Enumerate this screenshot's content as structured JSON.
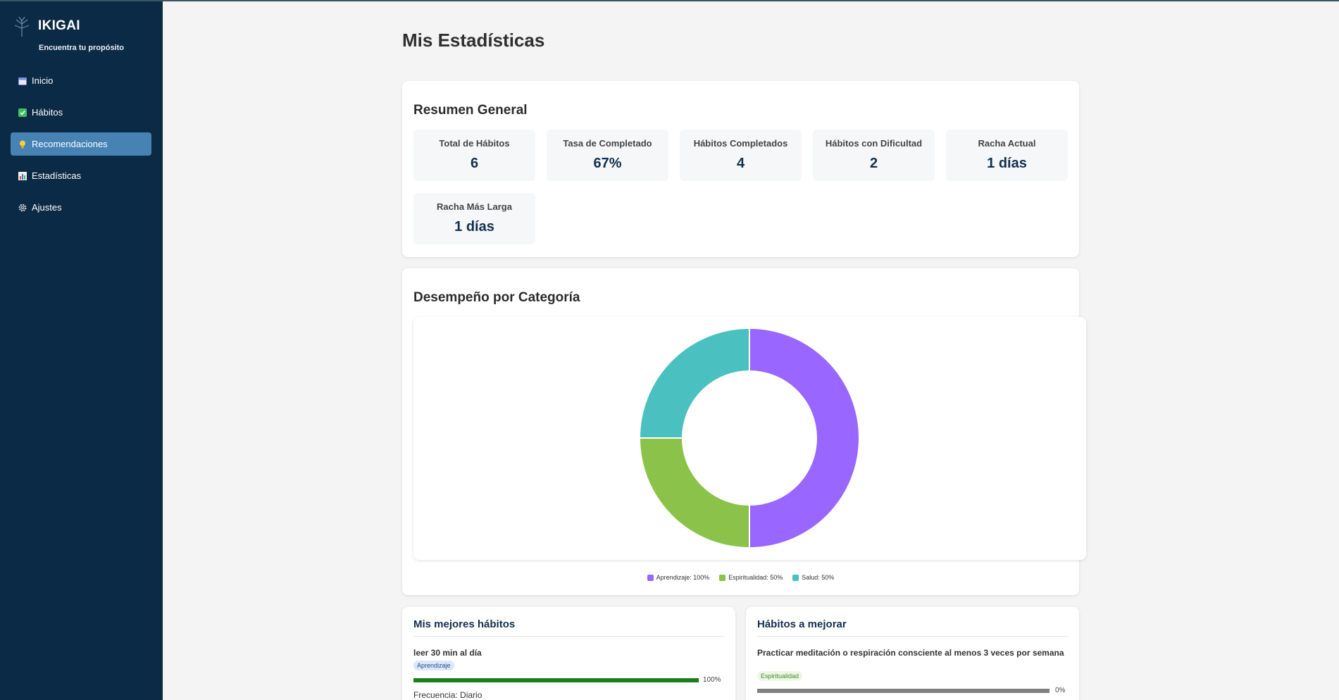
{
  "sidebar": {
    "brand": "IKIGAI",
    "tagline": "Encuentra tu propósito",
    "items": [
      {
        "label": "Inicio",
        "icon": "calendar-icon"
      },
      {
        "label": "Hábitos",
        "icon": "checkbox-icon"
      },
      {
        "label": "Recomendaciones",
        "icon": "lightbulb-icon",
        "active": true
      },
      {
        "label": "Estadísticas",
        "icon": "bar-chart-icon"
      },
      {
        "label": "Ajustes",
        "icon": "gear-icon"
      }
    ]
  },
  "page": {
    "title": "Mis Estadísticas"
  },
  "summary": {
    "title": "Resumen General",
    "stats": [
      {
        "label": "Total de Hábitos",
        "value": "6"
      },
      {
        "label": "Tasa de Completado",
        "value": "67%"
      },
      {
        "label": "Hábitos Completados",
        "value": "4"
      },
      {
        "label": "Hábitos con Dificultad",
        "value": "2"
      },
      {
        "label": "Racha Actual",
        "value": "1 días"
      },
      {
        "label": "Racha Más Larga",
        "value": "1 días"
      }
    ]
  },
  "performance": {
    "title": "Desempeño por Categoría",
    "legend": [
      "Aprendizaje: 100%",
      "Espiritualidad: 50%",
      "Salud: 50%"
    ]
  },
  "chart_data": {
    "type": "pie",
    "donut": true,
    "categories": [
      "Aprendizaje",
      "Espiritualidad",
      "Salud"
    ],
    "values": [
      100,
      50,
      50
    ],
    "colors": [
      "#9966ff",
      "#8bc34a",
      "#4bc0c0"
    ],
    "legend_position": "bottom"
  },
  "best_habits": {
    "title": "Mis mejores hábitos",
    "items": [
      {
        "name": "leer 30 min al día",
        "category": "Aprendizaje",
        "progress": 100,
        "progress_label": "100%",
        "frequency": "Frecuencia: Diario"
      }
    ]
  },
  "improve_habits": {
    "title": "Hábitos a mejorar",
    "items": [
      {
        "name": "Practicar meditación o respiración consciente al menos 3 veces por semana",
        "category": "Espiritualidad",
        "progress": 0,
        "progress_label": "0%"
      }
    ]
  },
  "colors": {
    "sidebar_bg": "#0b2a45",
    "active_nav": "#4682b4",
    "progress_good": "#1a7f1a",
    "progress_bad": "#808080"
  }
}
